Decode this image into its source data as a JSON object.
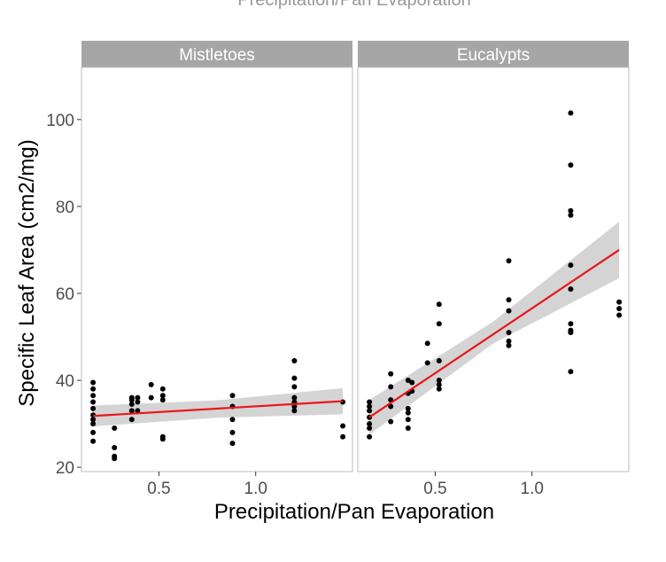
{
  "chart_data": {
    "type": "scatter",
    "title": "Precipitation/Pan Evaporation",
    "xlabel": "Precipitation/Pan Evaporation",
    "ylabel": "Specific Leaf Area (cm2/mg)",
    "xlim": [
      0.1,
      1.5
    ],
    "ylim": [
      19,
      112
    ],
    "x_ticks": [
      0.5,
      1.0
    ],
    "x_tick_labels": [
      "0.5",
      "1.0"
    ],
    "y_ticks": [
      20,
      40,
      60,
      80,
      100
    ],
    "y_tick_labels": [
      "20",
      "40",
      "60",
      "80",
      "100"
    ],
    "grid": false,
    "legend": "none",
    "colors": {
      "points": "#000000",
      "fit_line": "#e8161b",
      "confidence_band": "#cccccc",
      "strip_background": "#a6a6a6",
      "strip_text": "#ffffff",
      "panel_border": "#bdbdbd",
      "axis_text": "#4d4d4d"
    },
    "panels": [
      {
        "strip_label": "Mistletoes",
        "points": [
          [
            0.16,
            39.5
          ],
          [
            0.16,
            38
          ],
          [
            0.16,
            36.5
          ],
          [
            0.16,
            35
          ],
          [
            0.16,
            33.5
          ],
          [
            0.16,
            32
          ],
          [
            0.16,
            31
          ],
          [
            0.16,
            30
          ],
          [
            0.16,
            28
          ],
          [
            0.16,
            26
          ],
          [
            0.27,
            29
          ],
          [
            0.27,
            24.5
          ],
          [
            0.27,
            22.5
          ],
          [
            0.27,
            22
          ],
          [
            0.36,
            36
          ],
          [
            0.36,
            35.5
          ],
          [
            0.36,
            34.5
          ],
          [
            0.36,
            33
          ],
          [
            0.36,
            31
          ],
          [
            0.39,
            36
          ],
          [
            0.39,
            35
          ],
          [
            0.39,
            33
          ],
          [
            0.46,
            39
          ],
          [
            0.46,
            36
          ],
          [
            0.52,
            38
          ],
          [
            0.52,
            36.5
          ],
          [
            0.52,
            35.5
          ],
          [
            0.52,
            27
          ],
          [
            0.52,
            26.5
          ],
          [
            0.88,
            36.5
          ],
          [
            0.88,
            34
          ],
          [
            0.88,
            31
          ],
          [
            0.88,
            28
          ],
          [
            0.88,
            25.5
          ],
          [
            1.2,
            44.5
          ],
          [
            1.2,
            40.5
          ],
          [
            1.2,
            38.5
          ],
          [
            1.2,
            36
          ],
          [
            1.2,
            35
          ],
          [
            1.2,
            34
          ],
          [
            1.2,
            33
          ],
          [
            1.45,
            35
          ],
          [
            1.45,
            29.5
          ],
          [
            1.45,
            27
          ]
        ],
        "fit": {
          "x": [
            0.16,
            1.45
          ],
          "y": [
            31.8,
            35.2
          ]
        },
        "band": {
          "x": [
            0.16,
            0.8,
            1.45
          ],
          "upper": [
            34.2,
            35.4,
            38.2
          ],
          "lower": [
            29.4,
            31.4,
            32.2
          ]
        }
      },
      {
        "strip_label": "Eucalypts",
        "points": [
          [
            0.16,
            35
          ],
          [
            0.16,
            34
          ],
          [
            0.16,
            33
          ],
          [
            0.16,
            31.5
          ],
          [
            0.16,
            30
          ],
          [
            0.16,
            29
          ],
          [
            0.16,
            27
          ],
          [
            0.27,
            41.5
          ],
          [
            0.27,
            38.5
          ],
          [
            0.27,
            35.5
          ],
          [
            0.27,
            34
          ],
          [
            0.27,
            30.5
          ],
          [
            0.36,
            40
          ],
          [
            0.36,
            37
          ],
          [
            0.36,
            33.5
          ],
          [
            0.36,
            32.5
          ],
          [
            0.36,
            31
          ],
          [
            0.36,
            29
          ],
          [
            0.38,
            39.5
          ],
          [
            0.38,
            37.5
          ],
          [
            0.46,
            48.5
          ],
          [
            0.46,
            44
          ],
          [
            0.52,
            57.5
          ],
          [
            0.52,
            53
          ],
          [
            0.52,
            44.5
          ],
          [
            0.52,
            40
          ],
          [
            0.52,
            39
          ],
          [
            0.52,
            38
          ],
          [
            0.88,
            67.5
          ],
          [
            0.88,
            58.5
          ],
          [
            0.88,
            56
          ],
          [
            0.88,
            51
          ],
          [
            0.88,
            49
          ],
          [
            0.88,
            48
          ],
          [
            1.2,
            101.5
          ],
          [
            1.2,
            89.5
          ],
          [
            1.2,
            79
          ],
          [
            1.2,
            78
          ],
          [
            1.2,
            66.5
          ],
          [
            1.2,
            61
          ],
          [
            1.2,
            53
          ],
          [
            1.2,
            51.5
          ],
          [
            1.2,
            51
          ],
          [
            1.2,
            42
          ],
          [
            1.45,
            58
          ],
          [
            1.45,
            56.5
          ],
          [
            1.45,
            55
          ]
        ],
        "fit": {
          "x": [
            0.16,
            1.45
          ],
          "y": [
            31.5,
            70
          ]
        },
        "band": {
          "x": [
            0.16,
            0.8,
            1.45
          ],
          "upper": [
            35.5,
            53.5,
            76.5
          ],
          "lower": [
            27.5,
            48.5,
            63.5
          ]
        }
      }
    ]
  }
}
